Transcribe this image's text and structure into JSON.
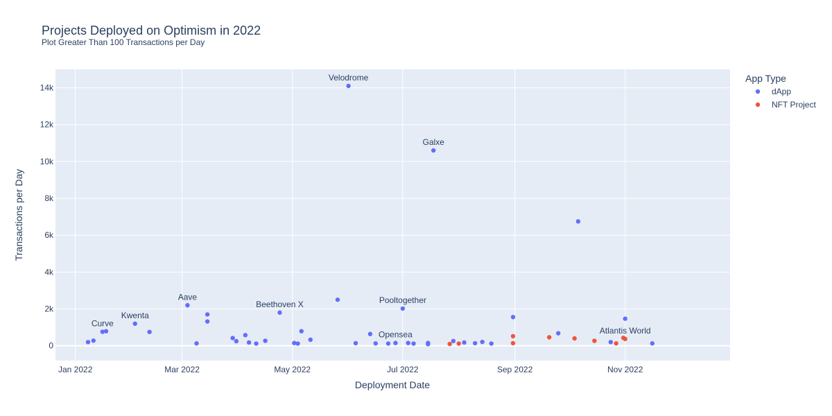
{
  "chart_data": {
    "type": "scatter",
    "title": "Projects Deployed on Optimism in 2022",
    "subtitle": "Plot Greater Than 100 Transactions per Day",
    "xlabel": "Deployment Date",
    "ylabel": "Transactions per Day",
    "xlim": [
      "2021-12-21",
      "2022-12-29"
    ],
    "ylim": [
      -800,
      15000
    ],
    "x_ticks": [
      {
        "value": "2022-01-01",
        "label": "Jan 2022"
      },
      {
        "value": "2022-03-01",
        "label": "Mar 2022"
      },
      {
        "value": "2022-05-01",
        "label": "May 2022"
      },
      {
        "value": "2022-07-01",
        "label": "Jul 2022"
      },
      {
        "value": "2022-09-01",
        "label": "Sep 2022"
      },
      {
        "value": "2022-11-01",
        "label": "Nov 2022"
      }
    ],
    "y_ticks": [
      {
        "value": 0,
        "label": "0"
      },
      {
        "value": 2000,
        "label": "2k"
      },
      {
        "value": 4000,
        "label": "4k"
      },
      {
        "value": 6000,
        "label": "6k"
      },
      {
        "value": 8000,
        "label": "8k"
      },
      {
        "value": 10000,
        "label": "10k"
      },
      {
        "value": 12000,
        "label": "12k"
      },
      {
        "value": 14000,
        "label": "14k"
      }
    ],
    "grid": true,
    "plot_bgcolor": "#E5ECF6",
    "legend": {
      "title": "App Type",
      "position": "top-right"
    },
    "series": [
      {
        "name": "dApp",
        "color": "#636EFA",
        "points": [
          {
            "x": "2022-01-08",
            "y": 200
          },
          {
            "x": "2022-01-11",
            "y": 280
          },
          {
            "x": "2022-01-16",
            "y": 760
          },
          {
            "x": "2022-01-18",
            "y": 790
          },
          {
            "x": "2022-02-03",
            "y": 1200
          },
          {
            "x": "2022-02-11",
            "y": 750
          },
          {
            "x": "2022-03-04",
            "y": 2200
          },
          {
            "x": "2022-03-09",
            "y": 130
          },
          {
            "x": "2022-03-15",
            "y": 1700
          },
          {
            "x": "2022-03-15",
            "y": 1320
          },
          {
            "x": "2022-03-29",
            "y": 420
          },
          {
            "x": "2022-03-31",
            "y": 250
          },
          {
            "x": "2022-04-05",
            "y": 580
          },
          {
            "x": "2022-04-07",
            "y": 180
          },
          {
            "x": "2022-04-11",
            "y": 120
          },
          {
            "x": "2022-04-16",
            "y": 270
          },
          {
            "x": "2022-04-24",
            "y": 1800
          },
          {
            "x": "2022-05-02",
            "y": 150
          },
          {
            "x": "2022-05-04",
            "y": 120
          },
          {
            "x": "2022-05-06",
            "y": 790
          },
          {
            "x": "2022-05-11",
            "y": 330
          },
          {
            "x": "2022-05-26",
            "y": 2500
          },
          {
            "x": "2022-06-01",
            "y": 14100
          },
          {
            "x": "2022-06-05",
            "y": 140
          },
          {
            "x": "2022-06-13",
            "y": 640
          },
          {
            "x": "2022-06-16",
            "y": 130
          },
          {
            "x": "2022-06-23",
            "y": 120
          },
          {
            "x": "2022-06-27",
            "y": 150
          },
          {
            "x": "2022-07-01",
            "y": 2020
          },
          {
            "x": "2022-07-04",
            "y": 150
          },
          {
            "x": "2022-07-07",
            "y": 120
          },
          {
            "x": "2022-07-15",
            "y": 150
          },
          {
            "x": "2022-07-15",
            "y": 90
          },
          {
            "x": "2022-07-18",
            "y": 10600
          },
          {
            "x": "2022-07-29",
            "y": 260
          },
          {
            "x": "2022-08-04",
            "y": 180
          },
          {
            "x": "2022-08-10",
            "y": 140
          },
          {
            "x": "2022-08-14",
            "y": 210
          },
          {
            "x": "2022-08-19",
            "y": 120
          },
          {
            "x": "2022-08-31",
            "y": 1560
          },
          {
            "x": "2022-09-25",
            "y": 680
          },
          {
            "x": "2022-10-06",
            "y": 6750
          },
          {
            "x": "2022-10-24",
            "y": 200
          },
          {
            "x": "2022-11-01",
            "y": 1470
          },
          {
            "x": "2022-11-16",
            "y": 130
          }
        ]
      },
      {
        "name": "NFT Project",
        "color": "#EF553B",
        "points": [
          {
            "x": "2022-07-27",
            "y": 100
          },
          {
            "x": "2022-08-01",
            "y": 120
          },
          {
            "x": "2022-08-31",
            "y": 520
          },
          {
            "x": "2022-08-31",
            "y": 140
          },
          {
            "x": "2022-09-20",
            "y": 460
          },
          {
            "x": "2022-10-04",
            "y": 400
          },
          {
            "x": "2022-10-15",
            "y": 270
          },
          {
            "x": "2022-10-27",
            "y": 130
          },
          {
            "x": "2022-10-31",
            "y": 430
          },
          {
            "x": "2022-11-01",
            "y": 370
          }
        ]
      }
    ],
    "annotations": [
      {
        "text": "Velodrome",
        "x": "2022-06-01",
        "y": 14100
      },
      {
        "text": "Galxe",
        "x": "2022-07-18",
        "y": 10600
      },
      {
        "text": "Aave",
        "x": "2022-03-04",
        "y": 2200
      },
      {
        "text": "Beethoven X",
        "x": "2022-04-24",
        "y": 1800
      },
      {
        "text": "Pooltogether",
        "x": "2022-07-01",
        "y": 2020
      },
      {
        "text": "Curve",
        "x": "2022-01-16",
        "y": 760
      },
      {
        "text": "Kwenta",
        "x": "2022-02-03",
        "y": 1200
      },
      {
        "text": "Opensea",
        "x": "2022-06-27",
        "y": 150
      },
      {
        "text": "Atlantis World",
        "x": "2022-11-01",
        "y": 370
      }
    ]
  }
}
